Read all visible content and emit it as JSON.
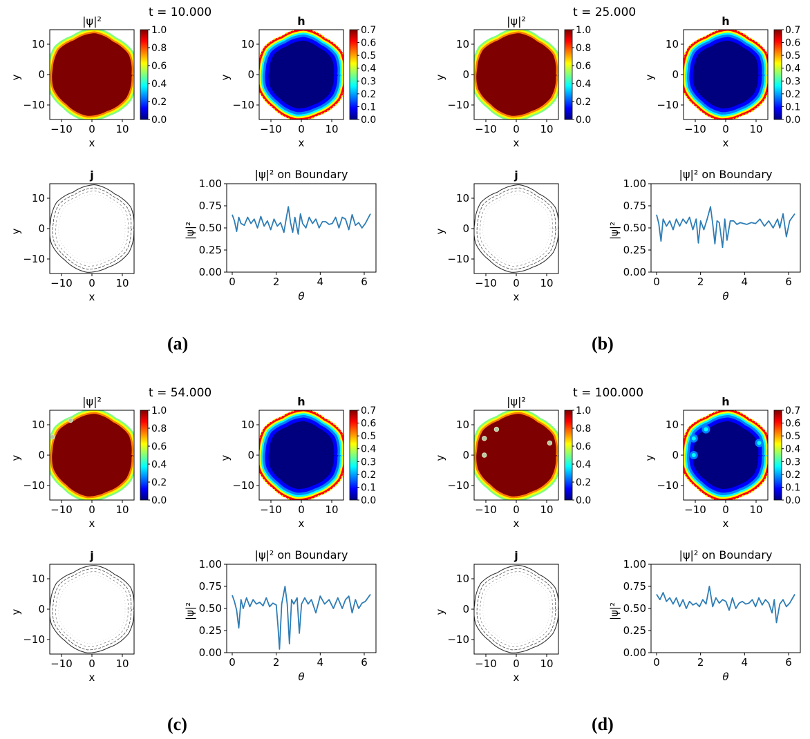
{
  "colors": {
    "boundary_line": "#2e7db5",
    "jet_stops": [
      "#00007f",
      "#0000ff",
      "#007fff",
      "#00ffff",
      "#7fff7f",
      "#ffff00",
      "#ff7f00",
      "#ff0000",
      "#7f0000"
    ],
    "contour": "#444444"
  },
  "chart_data": [
    {
      "panel_label": "(a)",
      "time_text": "t = 10.000",
      "psi_map": {
        "type": "heatmap",
        "title": "|ψ|²",
        "xlabel": "x",
        "ylabel": "y",
        "xticks": [
          -10,
          0,
          10
        ],
        "yticks": [
          10,
          0,
          -10
        ],
        "colorbar": {
          "min": 0.0,
          "max": 1.0,
          "ticks": [
            "1.0",
            "0.8",
            "0.6",
            "0.4",
            "0.2",
            "0.0"
          ],
          "colormap": "jet"
        },
        "vortices": []
      },
      "h_map": {
        "type": "heatmap",
        "title": "h",
        "xlabel": "x",
        "ylabel": "y",
        "xticks": [
          -10,
          0,
          10
        ],
        "yticks": [
          10,
          0,
          -10
        ],
        "colorbar": {
          "min": 0.0,
          "max": 0.7,
          "ticks": [
            "0.7",
            "0.6",
            "0.5",
            "0.4",
            "0.3",
            "0.2",
            "0.1",
            "0.0"
          ],
          "colormap": "jet"
        },
        "vortices": []
      },
      "j_map": {
        "type": "contour",
        "title": "j",
        "xlabel": "x",
        "ylabel": "y",
        "xticks": [
          -10,
          0,
          10
        ],
        "yticks": [
          10,
          0,
          -10
        ]
      },
      "boundary": {
        "type": "line",
        "title": "|ψ|² on Boundary",
        "xlabel": "θ",
        "ylabel": "|ψ|²",
        "xlim": [
          0,
          6.283
        ],
        "ylim": [
          0,
          1
        ],
        "xticks": [
          0,
          2,
          4,
          6
        ],
        "yticks": [
          "1.00",
          "0.75",
          "0.50",
          "0.25",
          "0.00"
        ],
        "theta": [
          0.0,
          0.1,
          0.2,
          0.3,
          0.4,
          0.55,
          0.7,
          0.85,
          1.0,
          1.15,
          1.3,
          1.45,
          1.6,
          1.75,
          1.9,
          2.05,
          2.2,
          2.35,
          2.45,
          2.55,
          2.65,
          2.75,
          2.85,
          3.0,
          3.1,
          3.2,
          3.35,
          3.5,
          3.65,
          3.8,
          3.95,
          4.1,
          4.25,
          4.4,
          4.55,
          4.7,
          4.85,
          5.0,
          5.15,
          5.3,
          5.45,
          5.6,
          5.75,
          5.9,
          6.05,
          6.283
        ],
        "values": [
          0.65,
          0.58,
          0.46,
          0.62,
          0.55,
          0.53,
          0.62,
          0.55,
          0.6,
          0.5,
          0.63,
          0.52,
          0.58,
          0.48,
          0.6,
          0.52,
          0.56,
          0.45,
          0.6,
          0.74,
          0.56,
          0.45,
          0.62,
          0.43,
          0.66,
          0.55,
          0.5,
          0.62,
          0.55,
          0.6,
          0.5,
          0.57,
          0.57,
          0.54,
          0.55,
          0.62,
          0.5,
          0.62,
          0.6,
          0.48,
          0.65,
          0.53,
          0.56,
          0.5,
          0.55,
          0.66
        ]
      }
    },
    {
      "panel_label": "(b)",
      "time_text": "t = 25.000",
      "psi_map": {
        "type": "heatmap",
        "title": "|ψ|²",
        "xlabel": "x",
        "ylabel": "y",
        "xticks": [
          -10,
          0,
          10
        ],
        "yticks": [
          10,
          0,
          -10
        ],
        "colorbar": {
          "min": 0.0,
          "max": 1.0,
          "ticks": [
            "1.0",
            "0.8",
            "0.6",
            "0.4",
            "0.2",
            "0.0"
          ],
          "colormap": "jet"
        },
        "vortices": []
      },
      "h_map": {
        "type": "heatmap",
        "title": "h",
        "xlabel": "x",
        "ylabel": "y",
        "xticks": [
          -10,
          0,
          10
        ],
        "yticks": [
          10,
          0,
          -10
        ],
        "colorbar": {
          "min": 0.0,
          "max": 0.7,
          "ticks": [
            "0.7",
            "0.6",
            "0.5",
            "0.4",
            "0.3",
            "0.2",
            "0.1",
            "0.0"
          ],
          "colormap": "jet"
        },
        "vortices": []
      },
      "j_map": {
        "type": "contour",
        "title": "j",
        "xlabel": "x",
        "ylabel": "y",
        "xticks": [
          -10,
          0,
          10
        ],
        "yticks": [
          10,
          0,
          -10
        ]
      },
      "boundary": {
        "type": "line",
        "title": "|ψ|² on Boundary",
        "xlabel": "θ",
        "ylabel": "|ψ|²",
        "xlim": [
          0,
          6.283
        ],
        "ylim": [
          0,
          1
        ],
        "xticks": [
          0,
          2,
          4,
          6
        ],
        "yticks": [
          "1.00",
          "0.75",
          "0.50",
          "0.25",
          "0.00"
        ],
        "theta": [
          0.0,
          0.1,
          0.2,
          0.3,
          0.45,
          0.6,
          0.75,
          0.9,
          1.05,
          1.2,
          1.35,
          1.5,
          1.65,
          1.8,
          1.9,
          2.0,
          2.15,
          2.3,
          2.45,
          2.55,
          2.65,
          2.75,
          2.85,
          3.0,
          3.1,
          3.2,
          3.35,
          3.5,
          3.65,
          3.8,
          3.95,
          4.1,
          4.3,
          4.5,
          4.7,
          4.9,
          5.1,
          5.3,
          5.5,
          5.6,
          5.75,
          5.9,
          6.05,
          6.283
        ],
        "values": [
          0.65,
          0.55,
          0.35,
          0.6,
          0.52,
          0.58,
          0.48,
          0.6,
          0.52,
          0.6,
          0.55,
          0.62,
          0.48,
          0.6,
          0.33,
          0.58,
          0.48,
          0.6,
          0.74,
          0.55,
          0.32,
          0.58,
          0.56,
          0.28,
          0.6,
          0.36,
          0.58,
          0.58,
          0.54,
          0.56,
          0.55,
          0.54,
          0.56,
          0.55,
          0.6,
          0.52,
          0.58,
          0.5,
          0.6,
          0.5,
          0.66,
          0.4,
          0.58,
          0.66
        ]
      }
    },
    {
      "panel_label": "(c)",
      "time_text": "t = 54.000",
      "psi_map": {
        "type": "heatmap",
        "title": "|ψ|²",
        "xlabel": "x",
        "ylabel": "y",
        "xticks": [
          -10,
          0,
          10
        ],
        "yticks": [
          10,
          0,
          -10
        ],
        "colorbar": {
          "min": 0.0,
          "max": 1.0,
          "ticks": [
            "1.0",
            "0.8",
            "0.6",
            "0.4",
            "0.2",
            "0.0"
          ],
          "colormap": "jet"
        },
        "vortices": [
          [
            -13,
            6
          ],
          [
            -7,
            11.5
          ]
        ]
      },
      "h_map": {
        "type": "heatmap",
        "title": "h",
        "xlabel": "x",
        "ylabel": "y",
        "xticks": [
          -10,
          0,
          10
        ],
        "yticks": [
          10,
          0,
          -10
        ],
        "colorbar": {
          "min": 0.0,
          "max": 0.7,
          "ticks": [
            "0.7",
            "0.6",
            "0.5",
            "0.4",
            "0.3",
            "0.2",
            "0.1",
            "0.0"
          ],
          "colormap": "jet"
        },
        "vortices": []
      },
      "j_map": {
        "type": "contour",
        "title": "j",
        "xlabel": "x",
        "ylabel": "y",
        "xticks": [
          -10,
          0,
          10
        ],
        "yticks": [
          10,
          0,
          -10
        ]
      },
      "boundary": {
        "type": "line",
        "title": "|ψ|² on Boundary",
        "xlabel": "θ",
        "ylabel": "|ψ|²",
        "xlim": [
          0,
          6.283
        ],
        "ylim": [
          0,
          1
        ],
        "xticks": [
          0,
          2,
          4,
          6
        ],
        "yticks": [
          "1.00",
          "0.75",
          "0.50",
          "0.25",
          "0.00"
        ],
        "theta": [
          0.0,
          0.1,
          0.2,
          0.3,
          0.4,
          0.5,
          0.65,
          0.8,
          0.95,
          1.1,
          1.25,
          1.4,
          1.55,
          1.7,
          1.85,
          2.0,
          2.08,
          2.15,
          2.25,
          2.4,
          2.5,
          2.6,
          2.7,
          2.8,
          2.95,
          3.05,
          3.15,
          3.3,
          3.45,
          3.6,
          3.8,
          4.0,
          4.2,
          4.4,
          4.6,
          4.8,
          5.0,
          5.15,
          5.3,
          5.45,
          5.6,
          5.75,
          5.9,
          6.05,
          6.283
        ],
        "values": [
          0.65,
          0.58,
          0.48,
          0.28,
          0.6,
          0.5,
          0.62,
          0.52,
          0.6,
          0.55,
          0.57,
          0.53,
          0.62,
          0.52,
          0.56,
          0.54,
          0.3,
          0.04,
          0.55,
          0.75,
          0.55,
          0.1,
          0.6,
          0.55,
          0.62,
          0.22,
          0.55,
          0.62,
          0.55,
          0.6,
          0.45,
          0.64,
          0.55,
          0.6,
          0.5,
          0.62,
          0.5,
          0.6,
          0.64,
          0.45,
          0.6,
          0.5,
          0.56,
          0.58,
          0.66
        ]
      }
    },
    {
      "panel_label": "(d)",
      "time_text": "t = 100.000",
      "psi_map": {
        "type": "heatmap",
        "title": "|ψ|²",
        "xlabel": "x",
        "ylabel": "y",
        "xticks": [
          -10,
          0,
          10
        ],
        "yticks": [
          10,
          0,
          -10
        ],
        "colorbar": {
          "min": 0.0,
          "max": 1.0,
          "ticks": [
            "1.0",
            "0.8",
            "0.6",
            "0.4",
            "0.2",
            "0.0"
          ],
          "colormap": "jet"
        },
        "vortices": [
          [
            -10.5,
            5.5
          ],
          [
            -6.5,
            8.5
          ],
          [
            -10.5,
            0
          ],
          [
            11,
            4
          ]
        ]
      },
      "h_map": {
        "type": "heatmap",
        "title": "h",
        "xlabel": "x",
        "ylabel": "y",
        "xticks": [
          -10,
          0,
          10
        ],
        "yticks": [
          10,
          0,
          -10
        ],
        "colorbar": {
          "min": 0.0,
          "max": 0.7,
          "ticks": [
            "0.7",
            "0.6",
            "0.5",
            "0.4",
            "0.3",
            "0.2",
            "0.1",
            "0.0"
          ],
          "colormap": "jet"
        },
        "vortices": [
          [
            -10.5,
            5.5
          ],
          [
            -6.5,
            8.5
          ],
          [
            -10.5,
            0
          ],
          [
            11,
            4
          ]
        ]
      },
      "j_map": {
        "type": "contour",
        "title": "j",
        "xlabel": "x",
        "ylabel": "y",
        "xticks": [
          -10,
          0,
          10
        ],
        "yticks": [
          10,
          0,
          -10
        ]
      },
      "boundary": {
        "type": "line",
        "title": "|ψ|² on Boundary",
        "xlabel": "θ",
        "ylabel": "|ψ|²",
        "xlim": [
          0,
          6.283
        ],
        "ylim": [
          0,
          1
        ],
        "xticks": [
          0,
          2,
          4,
          6
        ],
        "yticks": [
          "1.00",
          "0.75",
          "0.50",
          "0.25",
          "0.00"
        ],
        "theta": [
          0.0,
          0.15,
          0.3,
          0.45,
          0.6,
          0.75,
          0.9,
          1.05,
          1.2,
          1.35,
          1.5,
          1.65,
          1.8,
          1.95,
          2.1,
          2.25,
          2.4,
          2.55,
          2.7,
          2.85,
          3.0,
          3.15,
          3.3,
          3.45,
          3.6,
          3.75,
          3.9,
          4.05,
          4.2,
          4.35,
          4.5,
          4.65,
          4.8,
          4.95,
          5.1,
          5.25,
          5.35,
          5.45,
          5.6,
          5.75,
          5.9,
          6.05,
          6.283
        ],
        "values": [
          0.66,
          0.6,
          0.68,
          0.58,
          0.62,
          0.55,
          0.62,
          0.52,
          0.6,
          0.5,
          0.58,
          0.54,
          0.56,
          0.52,
          0.6,
          0.55,
          0.75,
          0.52,
          0.62,
          0.56,
          0.6,
          0.58,
          0.48,
          0.62,
          0.5,
          0.56,
          0.58,
          0.55,
          0.56,
          0.6,
          0.52,
          0.62,
          0.54,
          0.6,
          0.56,
          0.45,
          0.6,
          0.34,
          0.55,
          0.6,
          0.52,
          0.56,
          0.66
        ]
      }
    }
  ]
}
